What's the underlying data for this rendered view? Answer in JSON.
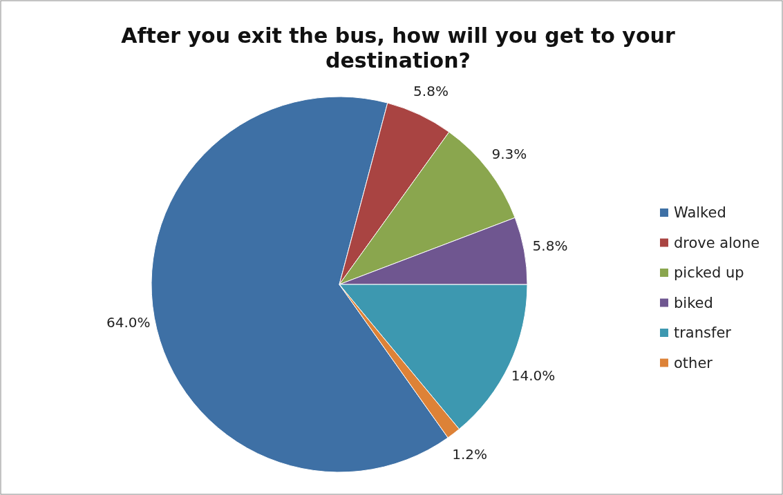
{
  "chart_data": {
    "type": "pie",
    "title": "After you exit the bus, how will you get to your destination?",
    "categories": [
      "Walked",
      "drove alone",
      "picked up",
      "biked",
      "transfer",
      "other"
    ],
    "values": [
      64.0,
      5.8,
      9.3,
      5.8,
      14.0,
      1.2
    ],
    "value_labels": [
      "64.0%",
      "5.8%",
      "9.3%",
      "5.8%",
      "14.0%",
      "1.2%"
    ],
    "colors": [
      "#3e70a5",
      "#a94442",
      "#8aa64e",
      "#6f5690",
      "#3d98b0",
      "#dd8237"
    ],
    "legend": "right"
  }
}
